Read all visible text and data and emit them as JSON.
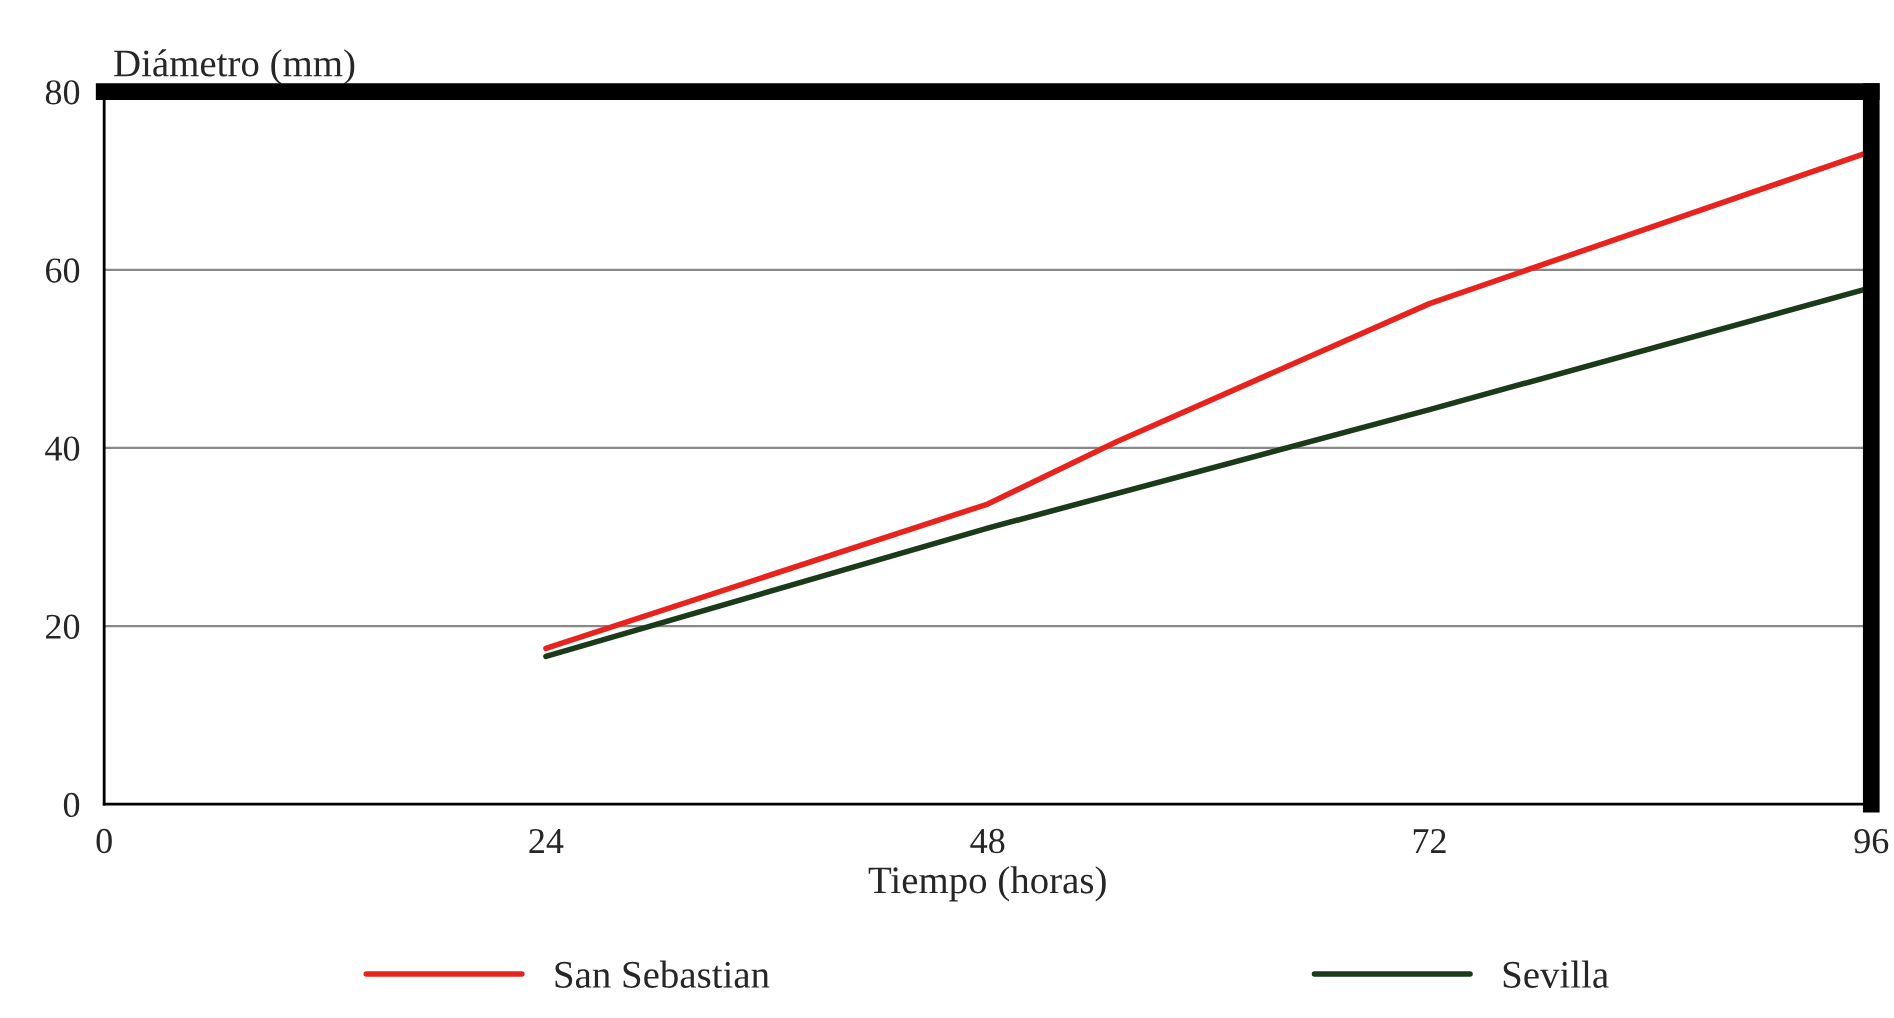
{
  "chart_data": {
    "type": "line",
    "xlabel": "Tiempo (horas)",
    "ylabel": "Diámetro (mm)",
    "xlim": [
      0,
      96
    ],
    "xticks": [
      0,
      24,
      48,
      72,
      96
    ],
    "ylim": [
      0,
      80
    ],
    "yticks": [
      0,
      20,
      40,
      60,
      80
    ],
    "grid": "y",
    "legend": "bottom",
    "marker": "none",
    "line_style": "solid",
    "series": [
      {
        "name": "San Sebastian",
        "color": "#e8231e",
        "x": [
          24,
          48,
          55,
          72,
          96
        ],
        "values": [
          17.5,
          33.7,
          40.7,
          56.2,
          73.3
        ]
      },
      {
        "name": "Sevilla",
        "color": "#1a3a1a",
        "x": [
          24,
          48,
          72,
          96
        ],
        "values": [
          16.6,
          31,
          44.3,
          58
        ]
      }
    ]
  }
}
